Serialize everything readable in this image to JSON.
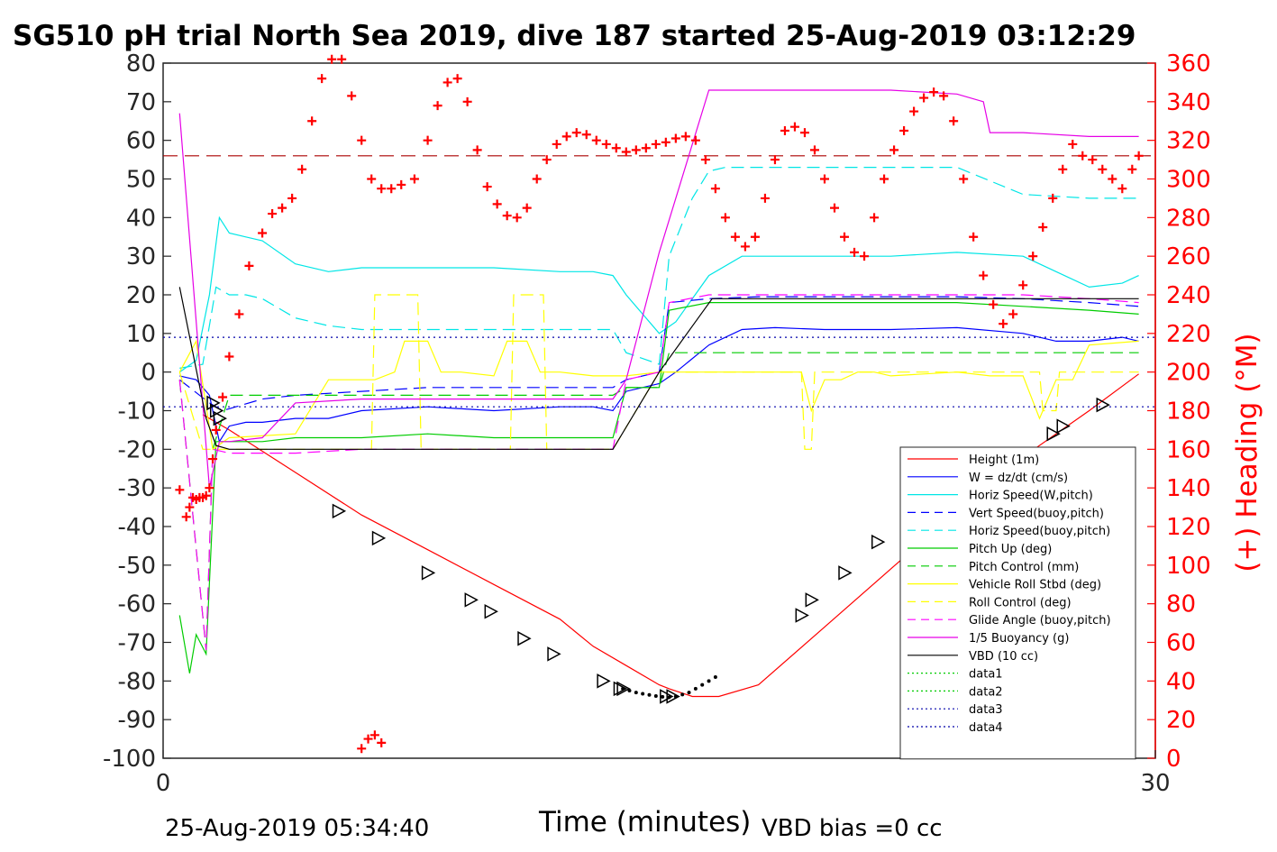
{
  "chart_data": {
    "type": "line",
    "title": "SG510 pH trial North Sea 2019, dive 187 started 25-Aug-2019 03:12:29",
    "xlabel": "Time (minutes)",
    "ylabel": "",
    "ylabel_right": "(+) Heading (°M)",
    "xlim": [
      0,
      30
    ],
    "ylim": [
      -100,
      80
    ],
    "ylim_right": [
      0,
      360
    ],
    "x_ticks": [
      "0",
      "30"
    ],
    "y_ticks": [
      "80",
      "70",
      "60",
      "50",
      "40",
      "30",
      "20",
      "10",
      "0",
      "-10",
      "-20",
      "-30",
      "-40",
      "-50",
      "-60",
      "-70",
      "-80",
      "-90",
      "-100"
    ],
    "y_right_ticks": [
      "360",
      "340",
      "320",
      "300",
      "280",
      "260",
      "240",
      "220",
      "200",
      "180",
      "160",
      "140",
      "120",
      "100",
      "80",
      "60",
      "40",
      "20",
      "0"
    ],
    "footer_left": "25-Aug-2019 05:34:40",
    "footer_right": "VBD bias =0 cc",
    "legend_position": "bottom-right",
    "series": [
      {
        "name": "Height (1m)",
        "color": "#ff0000",
        "dash": "solid",
        "x": [
          1.2,
          2.0,
          4.0,
          6.0,
          8.0,
          10.0,
          12.0,
          13.0,
          14.0,
          15.0,
          15.3,
          16.0,
          16.8,
          18.0,
          20.0,
          22.0,
          24.0,
          26.0,
          28.0,
          29.5
        ],
        "y": [
          -11,
          -15,
          -26,
          -37,
          -46,
          -55,
          -64,
          -71,
          -76,
          -81,
          -82,
          -84,
          -84,
          -81,
          -66,
          -51,
          -36,
          -22,
          -10,
          -0.5
        ]
      },
      {
        "name": "W = dz/dt (cm/s)",
        "color": "#0000ff",
        "dash": "solid",
        "x": [
          0.5,
          1.0,
          1.4,
          1.7,
          2.0,
          2.5,
          3.0,
          4.0,
          5.0,
          6.0,
          8.0,
          10.0,
          12.0,
          13.0,
          13.6,
          14.0,
          15.0,
          15.5,
          16.5,
          17.5,
          18.5,
          20.0,
          22.0,
          24.0,
          26.0,
          27.0,
          28.0,
          29.0,
          29.5
        ],
        "y": [
          -1,
          -2,
          -6,
          -18,
          -14,
          -13,
          -13,
          -12,
          -12,
          -10,
          -9,
          -10,
          -9,
          -9,
          -10,
          -5,
          -3,
          0,
          7,
          11,
          11.5,
          11,
          11,
          11.5,
          10,
          8,
          8,
          9,
          8
        ]
      },
      {
        "name": "Horiz Speed(W,pitch)",
        "color": "#00e6e6",
        "dash": "solid",
        "x": [
          0.5,
          1.0,
          1.4,
          1.7,
          2.0,
          2.5,
          3.0,
          4.0,
          5.0,
          6.0,
          8.0,
          10.0,
          12.0,
          13.0,
          13.6,
          14.0,
          15.0,
          15.5,
          16.5,
          17.5,
          18.5,
          20.0,
          22.0,
          24.0,
          26.0,
          27.0,
          28.0,
          29.0,
          29.5
        ],
        "y": [
          0,
          3,
          20,
          40,
          36,
          35,
          34,
          28,
          26,
          27,
          27,
          27,
          26,
          26,
          25,
          20,
          10,
          13,
          25,
          30,
          30,
          30,
          30,
          31,
          30,
          26,
          22,
          23,
          25
        ]
      },
      {
        "name": "Vert Speed(buoy,pitch)",
        "color": "#0000ff",
        "dash": "dash",
        "x": [
          0.5,
          1.4,
          1.8,
          2.2,
          3.0,
          4.0,
          6.0,
          8.0,
          10.0,
          12.0,
          13.6,
          14.0,
          15.0,
          15.3,
          16.5,
          18.0,
          20.0,
          22.0,
          24.0,
          26.0,
          28.0,
          29.5
        ],
        "y": [
          -2,
          -8,
          -10,
          -9,
          -7,
          -6,
          -5,
          -4,
          -4,
          -4,
          -4,
          -2,
          0,
          18,
          19,
          19.5,
          19.5,
          19.5,
          19.5,
          19,
          18,
          17
        ]
      },
      {
        "name": "Horiz Speed(buoy,pitch)",
        "color": "#00e6e6",
        "dash": "dash",
        "x": [
          0.5,
          1.2,
          1.6,
          2.0,
          2.5,
          3.0,
          4.0,
          5.0,
          6.0,
          8.0,
          10.0,
          12.0,
          13.6,
          14.0,
          15.0,
          15.3,
          16.0,
          16.5,
          17.0,
          18.0,
          20.0,
          22.0,
          24.0,
          26.0,
          28.0,
          29.5
        ],
        "y": [
          1,
          2,
          22,
          20,
          20,
          19,
          14,
          12,
          11,
          11,
          11,
          11,
          11,
          5,
          2,
          30,
          45,
          52,
          53,
          53,
          53,
          53,
          53,
          46,
          45,
          45
        ]
      },
      {
        "name": "Pitch Up (deg)",
        "color": "#00cc00",
        "dash": "solid",
        "x": [
          0.5,
          0.8,
          1.0,
          1.3,
          1.6,
          2.0,
          2.5,
          3.0,
          4.0,
          6.0,
          8.0,
          10.0,
          12.0,
          13.6,
          14.0,
          15.0,
          15.3,
          16.5,
          18.0,
          20.0,
          22.0,
          24.0,
          26.0,
          28.0,
          29.5
        ],
        "y": [
          -63,
          -78,
          -68,
          -73,
          -18,
          -18,
          -18,
          -18,
          -17,
          -17,
          -16,
          -17,
          -17,
          -17,
          -4,
          -4,
          16,
          18,
          18,
          18,
          18,
          18,
          17,
          16,
          15
        ]
      },
      {
        "name": "Pitch Control (mm)",
        "color": "#00cc00",
        "dash": "dash",
        "x": [
          0.5,
          1.3,
          1.5,
          2.0,
          4.0,
          6.0,
          8.0,
          10.0,
          12.0,
          13.6,
          14.0,
          15.0,
          15.3,
          17.0,
          20.0,
          24.0,
          26.0,
          28.0,
          29.5
        ],
        "y": [
          -2,
          -72,
          -20,
          -6,
          -6,
          -6,
          -6,
          -6,
          -6,
          -6,
          -4,
          -4,
          5,
          5,
          5,
          5,
          5,
          5,
          5
        ]
      },
      {
        "name": "Vehicle Roll Stbd (deg)",
        "color": "#ffff00",
        "dash": "solid",
        "x": [
          0.5,
          1.0,
          1.5,
          2.0,
          4.0,
          5.0,
          5.3,
          6.0,
          6.4,
          7.0,
          7.3,
          8.0,
          8.4,
          9.0,
          10.0,
          10.4,
          11.0,
          11.4,
          12.0,
          13.0,
          13.6,
          14.0,
          15.0,
          17.0,
          18.5,
          19.3,
          19.6,
          20.0,
          20.5,
          21.0,
          21.5,
          22.0,
          24.0,
          25.0,
          26.0,
          26.5,
          27.0,
          27.5,
          28.0,
          29.5
        ],
        "y": [
          0,
          8,
          -20,
          -17,
          -16,
          -2,
          -2,
          -2,
          -2,
          0,
          8,
          8,
          0,
          0,
          -1,
          8,
          8,
          0,
          0,
          -1,
          -1,
          -1,
          0,
          0,
          0,
          0,
          -10,
          -2,
          -2,
          0,
          0,
          -1,
          0,
          -1,
          -1,
          -12,
          -2,
          -2,
          7,
          8
        ]
      },
      {
        "name": "Roll Control (deg)",
        "color": "#ffff00",
        "dash": "dash",
        "x": [
          0.5,
          1.2,
          1.5,
          2.0,
          5.0,
          6.3,
          6.4,
          7.7,
          7.8,
          10.5,
          10.6,
          11.5,
          11.6,
          13.6,
          15.0,
          18.5,
          19.3,
          19.4,
          19.6,
          19.7,
          22.0,
          26.5,
          26.6,
          27.0,
          27.1,
          29.5
        ],
        "y": [
          0,
          -20,
          -20,
          -20,
          -20,
          -20,
          20,
          20,
          -20,
          -20,
          20,
          20,
          -20,
          -20,
          0,
          0,
          0,
          -20,
          -20,
          0,
          0,
          0,
          -10,
          -10,
          0,
          0
        ]
      },
      {
        "name": "Glide Angle (buoy,pitch)",
        "color": "#ff00ff",
        "dash": "dash",
        "x": [
          0.5,
          1.3,
          1.5,
          2.0,
          3.0,
          4.0,
          6.0,
          8.0,
          10.0,
          12.0,
          13.6,
          14.0,
          15.0,
          15.3,
          16.5,
          18.0,
          20.0,
          22.0,
          24.0,
          26.0,
          28.0,
          29.5
        ],
        "y": [
          -2,
          -72,
          -20,
          -21,
          -21,
          -21,
          -20,
          -20,
          -20,
          -20,
          -20,
          -2,
          0,
          18,
          20,
          20,
          20,
          20,
          20,
          20,
          19,
          18
        ]
      },
      {
        "name": "1/5 Buoyancy (g)",
        "color": "#e600e6",
        "dash": "solid",
        "x": [
          0.5,
          1.4,
          1.7,
          2.0,
          3.0,
          4.0,
          6.0,
          8.0,
          10.0,
          12.0,
          13.6,
          14.0,
          15.0,
          16.5,
          17.0,
          20.0,
          22.0,
          24.0,
          24.8,
          25.0,
          26.0,
          28.0,
          29.5
        ],
        "y": [
          67,
          -30,
          -18,
          -18,
          -17,
          -8,
          -7,
          -7,
          -7,
          -7,
          -7,
          -2,
          31,
          73,
          73,
          73,
          73,
          72,
          70,
          62,
          62,
          61,
          61
        ]
      },
      {
        "name": "VBD (10 cc)",
        "color": "#000000",
        "dash": "solid",
        "x": [
          0.5,
          1.3,
          1.6,
          2.0,
          13.6,
          15.0,
          16.6,
          17.0,
          20.0,
          24.0,
          29.5
        ],
        "y": [
          22,
          -12,
          -19,
          -20,
          -20,
          0,
          19,
          19,
          19,
          19,
          19
        ]
      },
      {
        "name": "data1",
        "color": "#00cc00",
        "dash": "dot",
        "x": [],
        "y": []
      },
      {
        "name": "data2",
        "color": "#00cc00",
        "dash": "dot",
        "x": [],
        "y": []
      },
      {
        "name": "data3",
        "color": "#0000aa",
        "dash": "dot",
        "x": [
          0,
          30
        ],
        "y": [
          9,
          9
        ]
      },
      {
        "name": "data4",
        "color": "#0000aa",
        "dash": "dot",
        "x": [
          0,
          30
        ],
        "y": [
          -9,
          -9
        ]
      }
    ],
    "reference_line_right": {
      "color": "#aa0000",
      "dash": "dash",
      "value": 312
    },
    "heading_points": {
      "color": "#ff0000",
      "marker": "+",
      "axis": "right",
      "x": [
        0.5,
        0.7,
        0.8,
        0.9,
        1.0,
        1.1,
        1.2,
        1.3,
        1.4,
        1.5,
        1.6,
        1.8,
        2.0,
        2.3,
        2.6,
        3.0,
        3.3,
        3.6,
        3.9,
        4.2,
        4.5,
        4.8,
        5.1,
        5.4,
        5.7,
        6.0,
        6.3,
        6.6,
        6.9,
        7.2,
        7.6,
        8.0,
        8.3,
        8.6,
        8.9,
        9.2,
        9.5,
        9.8,
        10.1,
        10.4,
        10.7,
        11.0,
        11.3,
        11.6,
        11.9,
        12.2,
        12.5,
        12.8,
        13.1,
        13.4,
        13.7,
        14.0,
        14.3,
        14.6,
        14.9,
        15.2,
        15.5,
        15.8,
        16.1,
        16.4,
        16.7,
        17.0,
        17.3,
        17.6,
        17.9,
        18.2,
        18.5,
        18.8,
        19.1,
        19.4,
        19.7,
        20.0,
        20.3,
        20.6,
        20.9,
        21.2,
        21.5,
        21.8,
        22.1,
        22.4,
        22.7,
        23.0,
        23.3,
        23.6,
        23.9,
        24.2,
        24.5,
        24.8,
        25.1,
        25.4,
        25.7,
        26.0,
        26.3,
        26.6,
        26.9,
        27.2,
        27.5,
        27.8,
        28.1,
        28.4,
        28.7,
        29.0,
        29.3,
        29.5,
        6.0,
        6.2,
        6.4,
        6.6
      ],
      "y": [
        139,
        125,
        130,
        135,
        134,
        135,
        135,
        136,
        140,
        155,
        170,
        187,
        208,
        230,
        255,
        272,
        282,
        285,
        290,
        305,
        330,
        352,
        362,
        362,
        343,
        320,
        300,
        295,
        295,
        297,
        300,
        320,
        338,
        350,
        352,
        340,
        315,
        296,
        287,
        281,
        280,
        285,
        300,
        310,
        318,
        322,
        324,
        323,
        320,
        318,
        316,
        314,
        315,
        316,
        318,
        319,
        321,
        322,
        320,
        310,
        295,
        280,
        270,
        265,
        270,
        290,
        310,
        325,
        327,
        324,
        315,
        300,
        285,
        270,
        262,
        260,
        280,
        300,
        315,
        325,
        335,
        342,
        345,
        343,
        330,
        300,
        270,
        250,
        235,
        225,
        230,
        245,
        260,
        275,
        290,
        305,
        318,
        312,
        310,
        305,
        300,
        295,
        305,
        312,
        5,
        10,
        12,
        8
      ]
    },
    "triangle_markers": {
      "color": "#000000",
      "marker": "triangle-right",
      "x": [
        1.5,
        1.6,
        1.7,
        5.3,
        6.5,
        8.0,
        9.3,
        9.9,
        10.9,
        11.8,
        13.3,
        13.8,
        13.9,
        15.2,
        15.4,
        19.3,
        19.6,
        20.6,
        21.6,
        26.9,
        27.2,
        28.4
      ],
      "y": [
        -8,
        -10,
        -12,
        -36,
        -43,
        -52,
        -59,
        -62,
        -69,
        -73,
        -80,
        -82,
        -82,
        -84,
        -84,
        -63,
        -59,
        -52,
        -44,
        -16,
        -14,
        -8.5
      ]
    },
    "dot_markers": {
      "color": "#000000",
      "x": [
        13.9,
        14.1,
        14.3,
        14.5,
        14.7,
        14.9,
        15.1,
        15.3,
        15.5,
        15.7,
        15.9,
        16.1,
        16.3,
        16.5,
        16.7
      ],
      "y": [
        -82,
        -82.5,
        -83,
        -83.3,
        -83.6,
        -83.9,
        -84.1,
        -84.2,
        -84,
        -83.5,
        -83,
        -82,
        -81,
        -80,
        -79
      ]
    }
  }
}
